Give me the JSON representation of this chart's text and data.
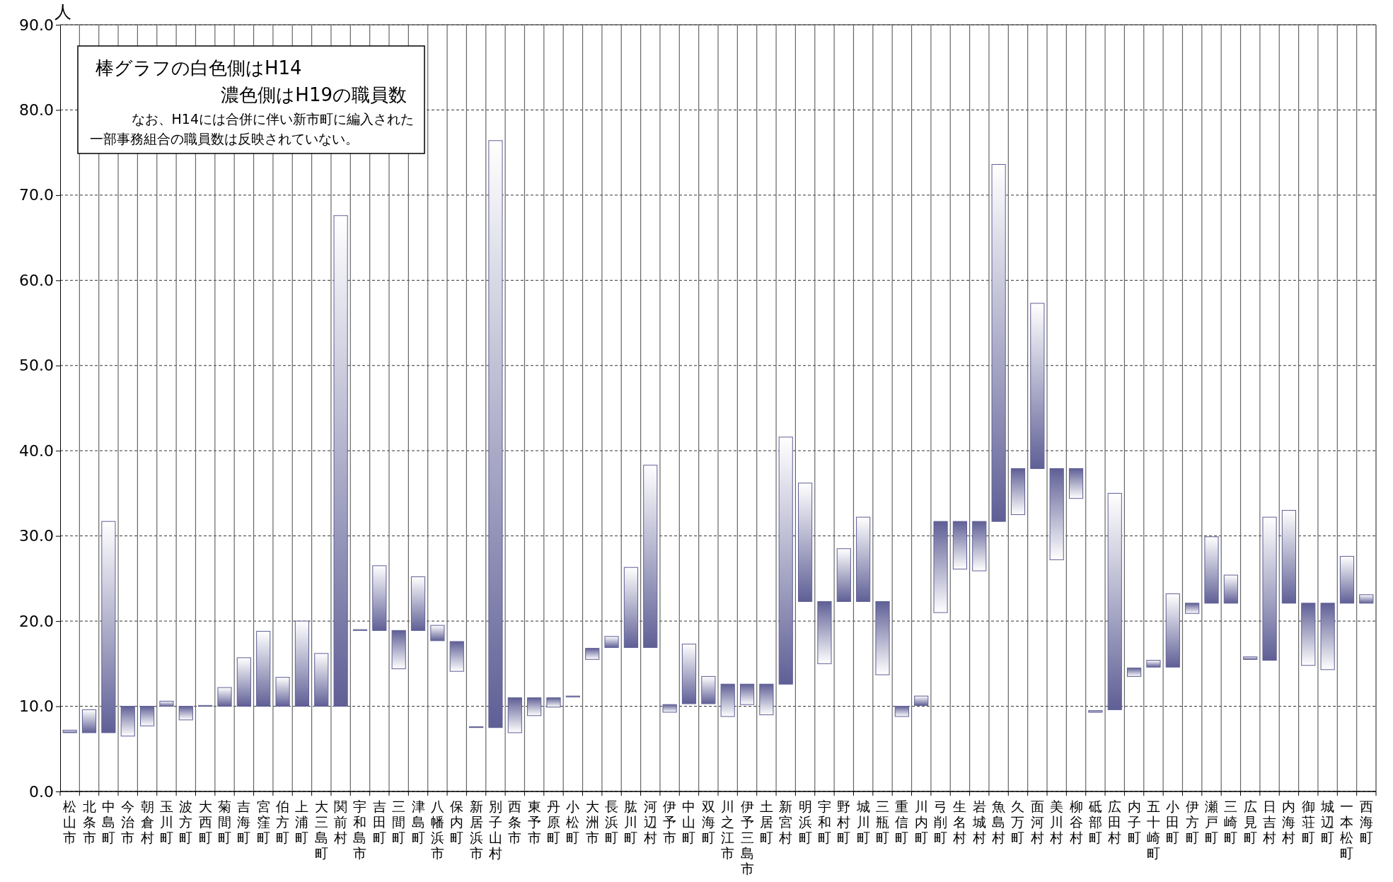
{
  "chart_data": {
    "type": "bar",
    "ylabel": "人",
    "categories": [
      "松山市",
      "北条市",
      "中島町",
      "今治市",
      "朝倉村",
      "玉川町",
      "波方町",
      "大西町",
      "菊間町",
      "吉海町",
      "宮窪町",
      "伯方町",
      "上浦町",
      "大三島町",
      "関前村",
      "宇和島市",
      "吉田町",
      "三間町",
      "津島町",
      "八幡浜市",
      "保内町",
      "新居浜市",
      "別子山村",
      "西条市",
      "東予市",
      "丹原町",
      "小松町",
      "大洲市",
      "長浜町",
      "肱川町",
      "河辺村",
      "伊予市",
      "中山町",
      "双海町",
      "川之江市",
      "伊予三島市",
      "土居町",
      "新宮村",
      "明浜町",
      "宇和町",
      "野村町",
      "城川町",
      "三瓶町",
      "重信町",
      "川内町",
      "弓削町",
      "生名村",
      "岩城村",
      "魚島村",
      "久万町",
      "面河村",
      "美川村",
      "柳谷村",
      "砥部町",
      "広田村",
      "内子町",
      "五十崎町",
      "小田町",
      "伊方町",
      "瀬戸町",
      "三崎町",
      "広見町",
      "日吉村",
      "内海村",
      "御荘町",
      "城辺町",
      "一本松町",
      "西海町"
    ],
    "base": [
      7.2,
      9.6,
      31.7,
      6.5,
      7.7,
      10.6,
      8.4,
      10.1,
      12.2,
      15.7,
      18.8,
      13.4,
      20.0,
      16.2,
      67.6,
      19.0,
      26.5,
      14.4,
      25.2,
      19.5,
      14.1,
      7.6,
      76.4,
      6.9,
      8.9,
      9.9,
      11.2,
      15.5,
      18.2,
      26.3,
      38.3,
      9.3,
      17.3,
      13.5,
      8.8,
      10.2,
      9.0,
      41.6,
      36.2,
      15.0,
      28.5,
      32.2,
      13.7,
      8.8,
      11.2,
      21.0,
      26.1,
      25.9,
      73.6,
      32.5,
      57.3,
      27.2,
      34.4,
      9.5,
      35.0,
      13.5,
      15.4,
      23.2,
      20.9,
      29.9,
      25.4,
      15.8,
      32.2,
      33.0,
      14.8,
      14.3,
      27.6,
      23.1
    ],
    "values": [
      -0.3,
      -2.7,
      -24.8,
      3.5,
      2.3,
      -0.6,
      1.6,
      -0.1,
      -2.2,
      -5.7,
      -8.8,
      -3.4,
      -10.0,
      -6.2,
      -57.6,
      -0.1,
      -7.6,
      4.5,
      -6.3,
      -1.8,
      3.5,
      -0.1,
      -68.9,
      4.1,
      2.1,
      1.1,
      -0.1,
      1.3,
      -1.3,
      -9.4,
      -21.4,
      0.9,
      -7.0,
      -3.2,
      3.8,
      2.4,
      3.6,
      -29.0,
      -13.9,
      7.3,
      -6.2,
      -9.9,
      8.6,
      1.2,
      -1.1,
      10.7,
      5.6,
      5.8,
      -41.9,
      5.4,
      -19.4,
      10.7,
      3.5,
      -0.2,
      -25.4,
      1.0,
      -0.8,
      -8.6,
      1.2,
      -7.8,
      -3.3,
      -0.3,
      -16.8,
      -10.9,
      7.3,
      7.8,
      -5.5,
      -1.0
    ],
    "color": "#5f5f96",
    "ylim": [
      0,
      90
    ],
    "yticks": [
      {
        "value": 0,
        "label": "0.0"
      },
      {
        "value": 10,
        "label": "10.0"
      },
      {
        "value": 20,
        "label": "20.0"
      },
      {
        "value": 30,
        "label": "30.0"
      },
      {
        "value": 40,
        "label": "40.0"
      },
      {
        "value": 50,
        "label": "50.0"
      },
      {
        "value": 60,
        "label": "60.0"
      },
      {
        "value": 70,
        "label": "70.0"
      },
      {
        "value": 80,
        "label": "80.0"
      },
      {
        "value": 90,
        "label": "90.0"
      }
    ],
    "grid": true,
    "annotations": [
      "棒グラフの白色側はH14",
      "濃色側はH19の職員数",
      "なお、H14には合併に伴い新市町に編入された",
      "一部事務組合の職員数は反映されていない。"
    ]
  }
}
